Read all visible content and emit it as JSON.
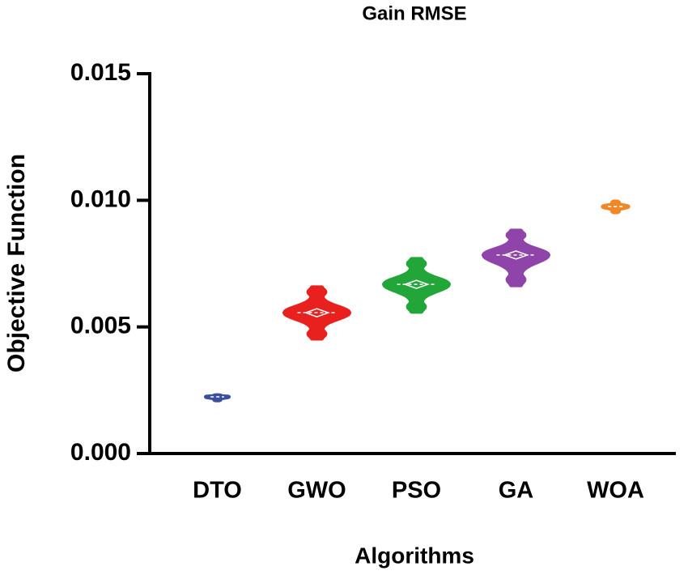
{
  "chart_data": {
    "type": "violin",
    "title": "Gain RMSE",
    "x_label": "Algorithms",
    "y_label": "Objective Function",
    "categories": [
      "DTO",
      "GWO",
      "PSO",
      "GA",
      "WOA"
    ],
    "colors": [
      "#3b4fa0",
      "#e8211f",
      "#22a63a",
      "#8e44a8",
      "#f0882a"
    ],
    "min": [
      0.0021,
      0.00454,
      0.0056,
      0.00665,
      0.00953
    ],
    "median": [
      0.00224,
      0.00556,
      0.00668,
      0.00784,
      0.00975
    ],
    "max": [
      0.0023,
      0.00656,
      0.00768,
      0.0088,
      0.00995
    ],
    "ylim": [
      0,
      0.015
    ],
    "yticks": [
      {
        "value": 0,
        "label": "0.000"
      },
      0.005,
      {
        "value": 0.01,
        "label": "0.010"
      },
      0.015
    ]
  }
}
